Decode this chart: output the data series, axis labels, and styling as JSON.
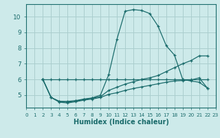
{
  "xlabel": "Humidex (Indice chaleur)",
  "background_color": "#cdeaea",
  "grid_color": "#aacece",
  "line_color": "#1a6b6b",
  "xlim": [
    0,
    23
  ],
  "ylim": [
    4.2,
    10.8
  ],
  "xticks": [
    0,
    1,
    2,
    3,
    4,
    5,
    6,
    7,
    8,
    9,
    10,
    11,
    12,
    13,
    14,
    15,
    16,
    17,
    18,
    19,
    20,
    21,
    22,
    23
  ],
  "yticks": [
    5,
    6,
    7,
    8,
    9,
    10
  ],
  "series": [
    {
      "x": [
        2,
        3,
        4,
        5,
        6,
        7,
        8,
        9,
        10,
        11,
        12,
        13,
        14,
        15,
        16,
        17,
        18,
        19,
        20,
        21,
        22
      ],
      "y": [
        6.0,
        6.0,
        6.0,
        6.0,
        6.0,
        6.0,
        6.0,
        6.0,
        6.0,
        6.0,
        6.0,
        6.0,
        6.0,
        6.0,
        6.0,
        6.0,
        6.0,
        6.0,
        6.0,
        6.0,
        6.0
      ]
    },
    {
      "x": [
        2,
        3,
        4,
        5,
        6,
        7,
        8,
        9,
        10,
        11,
        12,
        13,
        14,
        15,
        16,
        17,
        18,
        19,
        20,
        21,
        22
      ],
      "y": [
        6.0,
        4.85,
        4.6,
        4.6,
        4.65,
        4.75,
        4.82,
        5.0,
        6.3,
        8.55,
        10.35,
        10.45,
        10.4,
        10.2,
        9.4,
        8.15,
        7.55,
        6.0,
        5.9,
        5.82,
        5.45
      ]
    },
    {
      "x": [
        2,
        3,
        4,
        5,
        6,
        7,
        8,
        9,
        10,
        11,
        12,
        13,
        14,
        15,
        16,
        17,
        18,
        19,
        20,
        21,
        22
      ],
      "y": [
        6.0,
        4.85,
        4.6,
        4.55,
        4.62,
        4.72,
        4.8,
        4.9,
        5.3,
        5.5,
        5.7,
        5.85,
        6.0,
        6.1,
        6.25,
        6.5,
        6.75,
        7.0,
        7.2,
        7.5,
        7.5
      ]
    },
    {
      "x": [
        2,
        3,
        4,
        5,
        6,
        7,
        8,
        9,
        10,
        11,
        12,
        13,
        14,
        15,
        16,
        17,
        18,
        19,
        20,
        21,
        22
      ],
      "y": [
        6.0,
        4.85,
        4.55,
        4.5,
        4.58,
        4.68,
        4.75,
        4.85,
        5.05,
        5.15,
        5.3,
        5.42,
        5.52,
        5.62,
        5.72,
        5.82,
        5.9,
        5.93,
        5.96,
        6.1,
        5.45
      ]
    }
  ]
}
